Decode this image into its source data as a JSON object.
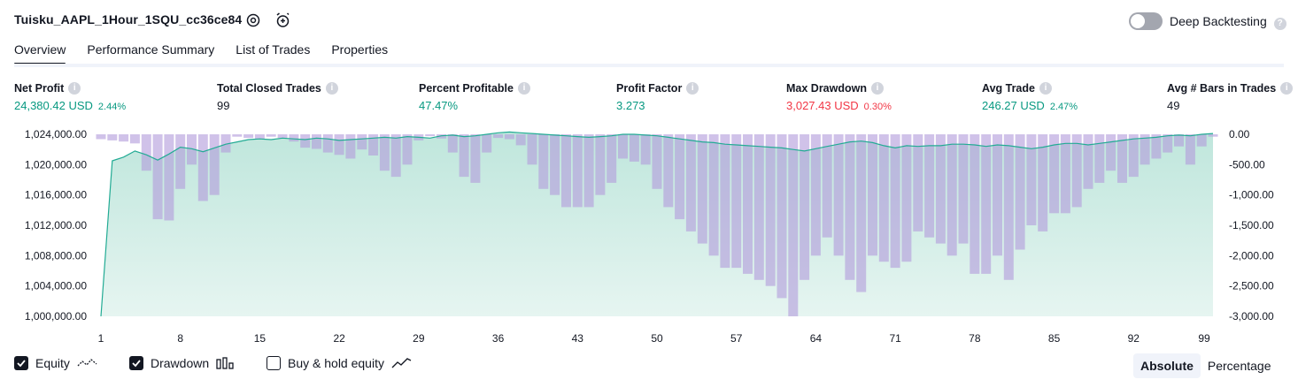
{
  "header": {
    "title": "Tuisku_AAPL_1Hour_1SQU_cc36ce84",
    "deep_backtesting_label": "Deep Backtesting",
    "deep_backtesting_on": false,
    "help_glyph": "?"
  },
  "tabs": [
    {
      "label": "Overview",
      "active": true
    },
    {
      "label": "Performance Summary",
      "active": false
    },
    {
      "label": "List of Trades",
      "active": false
    },
    {
      "label": "Properties",
      "active": false
    }
  ],
  "stats": [
    {
      "label": "Net Profit",
      "value": "24,380.42 USD",
      "pct": "2.44%",
      "color": "green"
    },
    {
      "label": "Total Closed Trades",
      "value": "99",
      "pct": "",
      "color": "neutral"
    },
    {
      "label": "Percent Profitable",
      "value": "47.47%",
      "pct": "",
      "color": "green"
    },
    {
      "label": "Profit Factor",
      "value": "3.273",
      "pct": "",
      "color": "green"
    },
    {
      "label": "Max Drawdown",
      "value": "3,027.43 USD",
      "pct": "0.30%",
      "color": "red"
    },
    {
      "label": "Avg Trade",
      "value": "246.27 USD",
      "pct": "2.47%",
      "color": "green"
    },
    {
      "label": "Avg # Bars in Trades",
      "value": "49",
      "pct": "",
      "color": "neutral"
    }
  ],
  "chart_data": {
    "type": "area",
    "x_ticks": [
      "1",
      "8",
      "15",
      "22",
      "29",
      "36",
      "43",
      "50",
      "57",
      "64",
      "71",
      "78",
      "85",
      "92",
      "99"
    ],
    "x_range": [
      1,
      99
    ],
    "left_axis": {
      "ticks": [
        "1,024,000.00",
        "1,020,000.00",
        "1,016,000.00",
        "1,012,000.00",
        "1,008,000.00",
        "1,004,000.00",
        "1,000,000.00"
      ],
      "range": [
        1000000,
        1024000
      ]
    },
    "right_axis": {
      "ticks": [
        "0.00",
        "-500.00",
        "-1,000.00",
        "-1,500.00",
        "-2,000.00",
        "-2,500.00",
        "-3,000.00"
      ],
      "range": [
        -3000,
        0
      ]
    },
    "equity": {
      "color": "#22ab94",
      "values": [
        1000000,
        1020500,
        1021000,
        1021800,
        1021300,
        1020600,
        1021400,
        1022300,
        1022100,
        1021700,
        1022200,
        1022700,
        1023000,
        1023300,
        1023400,
        1023300,
        1023500,
        1023400,
        1023300,
        1023500,
        1023400,
        1023200,
        1023300,
        1023400,
        1023500,
        1023600,
        1023500,
        1023700,
        1023600,
        1023500,
        1023800,
        1023900,
        1023700,
        1023800,
        1024000,
        1024200,
        1024300,
        1024200,
        1024100,
        1024000,
        1023900,
        1023800,
        1023700,
        1023600,
        1023700,
        1023800,
        1024000,
        1024000,
        1023900,
        1023800,
        1023600,
        1023400,
        1023200,
        1023000,
        1022900,
        1022700,
        1022600,
        1022500,
        1022400,
        1022300,
        1022200,
        1022000,
        1021800,
        1022100,
        1022400,
        1022700,
        1023000,
        1023100,
        1022900,
        1022500,
        1022200,
        1022500,
        1022400,
        1022500,
        1022500,
        1022700,
        1022700,
        1022600,
        1022400,
        1022600,
        1022500,
        1022300,
        1022100,
        1022300,
        1022600,
        1022800,
        1022800,
        1022600,
        1022800,
        1023000,
        1023200,
        1023400,
        1023500,
        1023600,
        1023800,
        1023900,
        1023800,
        1024000,
        1024100
      ]
    },
    "drawdown": {
      "color": "#b39ddb",
      "values": [
        -80,
        -100,
        -120,
        -150,
        -600,
        -1400,
        -1420,
        -900,
        -500,
        -1100,
        -1000,
        -300,
        -40,
        -60,
        -80,
        -40,
        -60,
        -120,
        -220,
        -240,
        -300,
        -340,
        -400,
        -250,
        -350,
        -600,
        -700,
        -500,
        -100,
        -30,
        -70,
        -300,
        -700,
        -800,
        -300,
        -60,
        -80,
        -180,
        -500,
        -900,
        -1000,
        -1200,
        -1200,
        -1200,
        -1000,
        -800,
        -400,
        -450,
        -500,
        -900,
        -1200,
        -1400,
        -1600,
        -1800,
        -2000,
        -2200,
        -2200,
        -2300,
        -2400,
        -2500,
        -2700,
        -3000,
        -2400,
        -2000,
        -1700,
        -2000,
        -2400,
        -2600,
        -2000,
        -2100,
        -2200,
        -2100,
        -1600,
        -1700,
        -1800,
        -2000,
        -1800,
        -2300,
        -2300,
        -2000,
        -2400,
        -1900,
        -1500,
        -1600,
        -1300,
        -1300,
        -1200,
        -900,
        -800,
        -600,
        -800,
        -700,
        -500,
        -400,
        -300,
        -200,
        -500,
        -200,
        -40
      ]
    }
  },
  "footer": {
    "legend": [
      {
        "label": "Equity",
        "checked": true,
        "icon": "equity-line-icon"
      },
      {
        "label": "Drawdown",
        "checked": true,
        "icon": "drawdown-bars-icon"
      },
      {
        "label": "Buy & hold equity",
        "checked": false,
        "icon": "buy-hold-line-icon"
      }
    ],
    "modes": [
      {
        "label": "Absolute",
        "active": true
      },
      {
        "label": "Percentage",
        "active": false
      }
    ]
  }
}
